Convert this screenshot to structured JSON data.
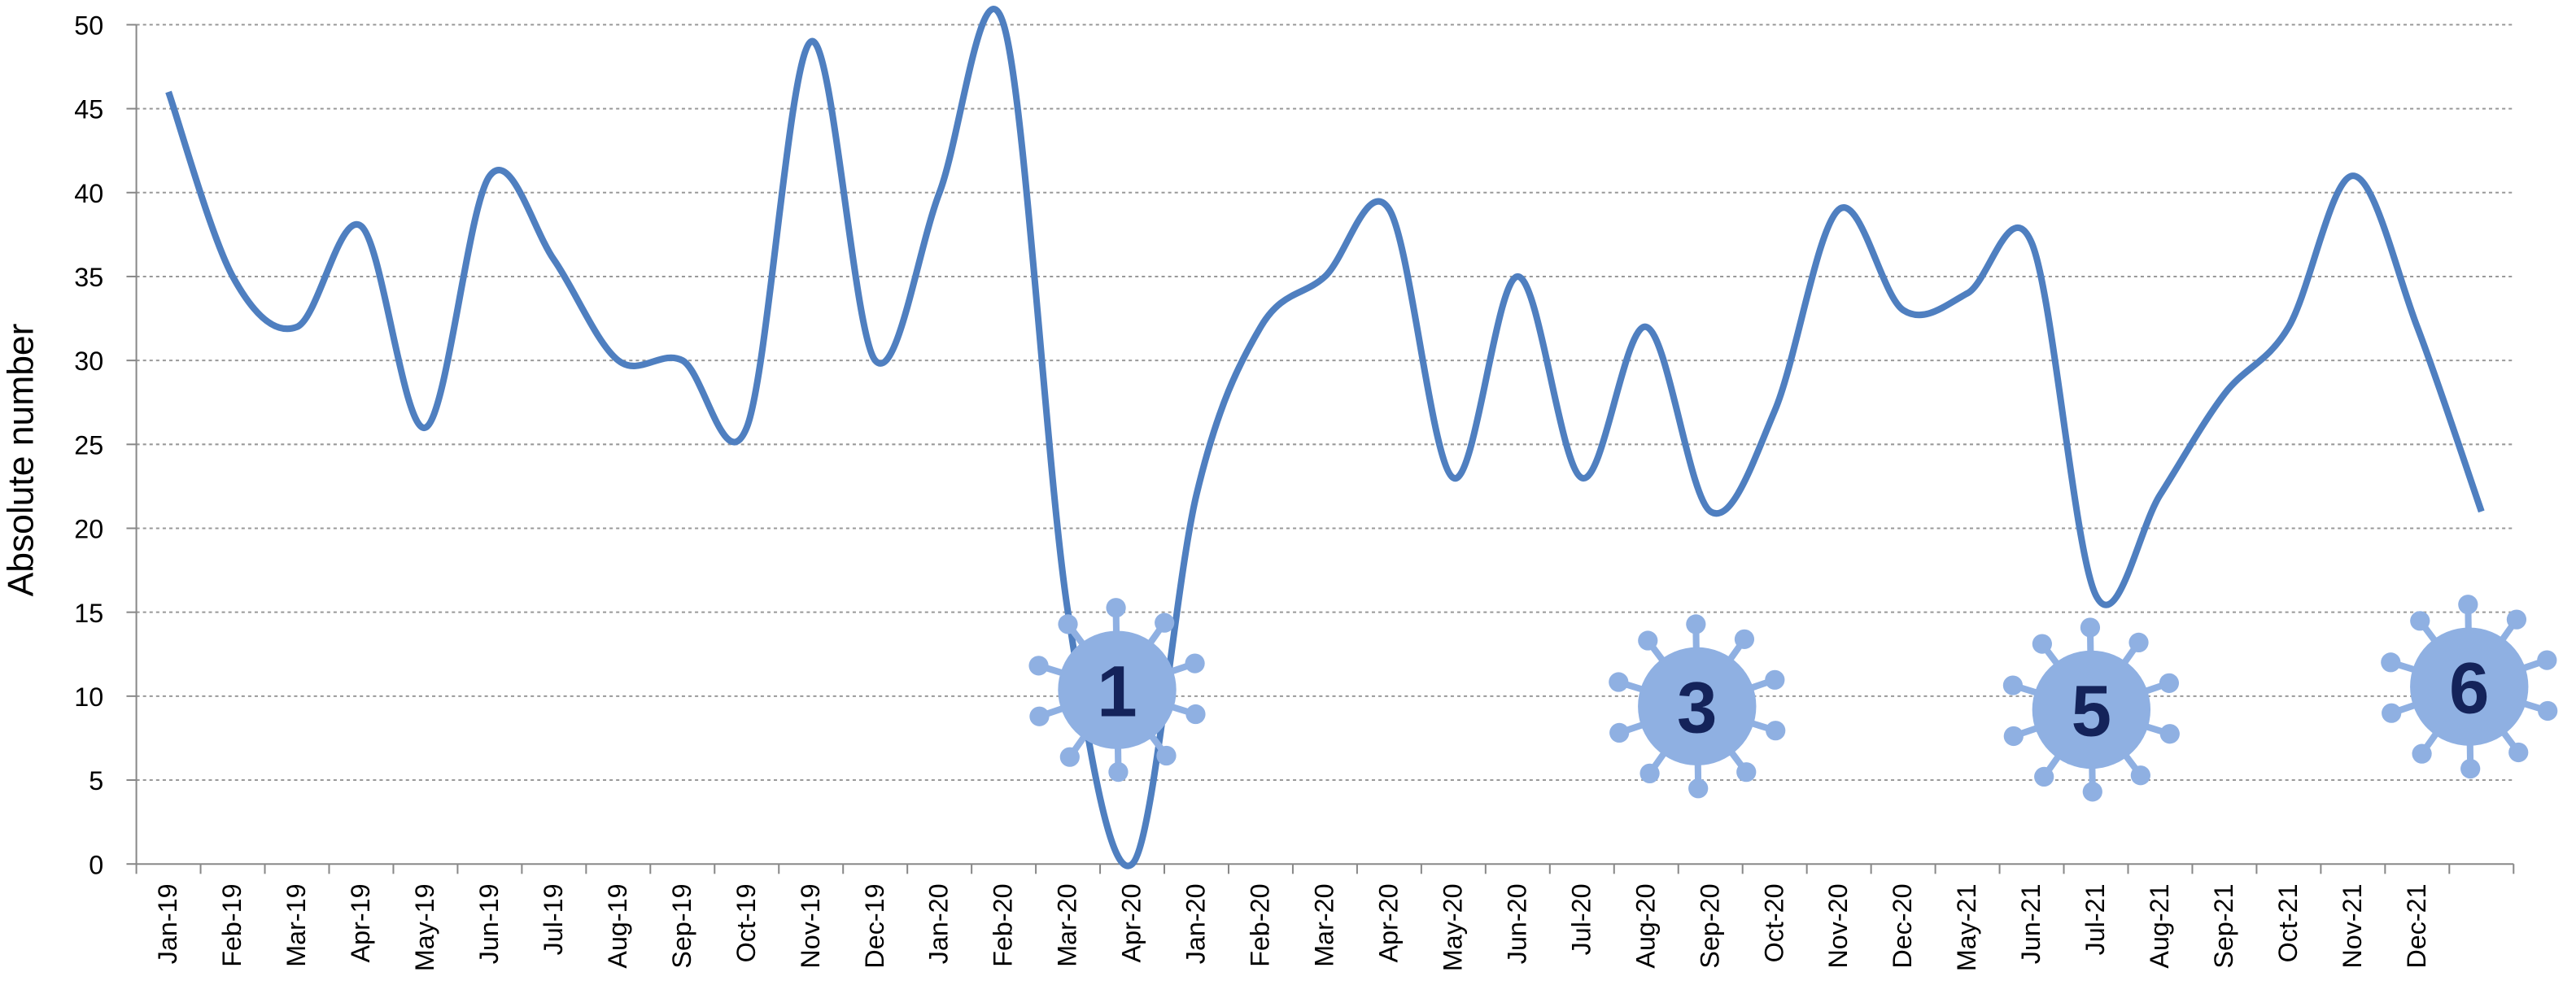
{
  "chart_data": {
    "type": "line",
    "y_label": "Absolute number",
    "categories": [
      "Jan-19",
      "Feb-19",
      "Mar-19",
      "Apr-19",
      "May-19",
      "Jun-19",
      "Jul-19",
      "Aug-19",
      "Sep-19",
      "Oct-19",
      "Nov-19",
      "Dec-19",
      "Jan-20",
      "Feb-20",
      "Mar-20",
      "Apr-20",
      "Jan-20",
      "Feb-20",
      "Mar-20",
      "Apr-20",
      "May-20",
      "Jun-20",
      "Jul-20",
      "Aug-20",
      "Sep-20",
      "Oct-20",
      "Nov-20",
      "Dec-20",
      "May-21",
      "Jun-21",
      "Jul-21",
      "Aug-21",
      "Sep-21",
      "Oct-21",
      "Nov-21",
      "Dec-21",
      null
    ],
    "series": [
      {
        "name": "Absolute number",
        "color": "#4f7fc0",
        "values": [
          46,
          35,
          32,
          38,
          26,
          41,
          36,
          30,
          30,
          26,
          49,
          30,
          40,
          50,
          15,
          0,
          22,
          32,
          35,
          39,
          23,
          35,
          23,
          32,
          21,
          27,
          39,
          33,
          34,
          37,
          16,
          22,
          28,
          32,
          41,
          32,
          21
        ]
      }
    ],
    "ylim": [
      0,
      50
    ],
    "yticks": [
      0,
      5,
      10,
      15,
      20,
      25,
      30,
      35,
      40,
      45,
      50
    ],
    "grid": true,
    "annotations": [
      "1",
      "3",
      "5",
      "6"
    ]
  }
}
